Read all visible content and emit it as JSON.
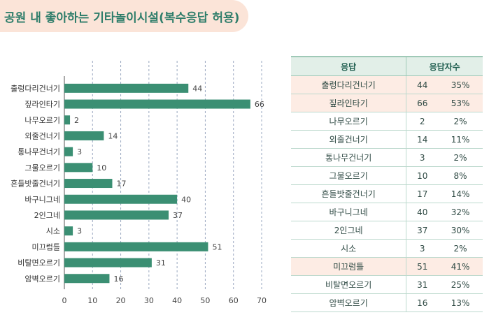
{
  "title": "공원 내 좋아하는 기타놀이시설(복수응답 허용)",
  "colors": {
    "bar": "#3b8f73",
    "title": "#2e7d6a",
    "title_bg": "#fbe4d8",
    "highlight": "#fdece4",
    "header_bg": "#e2efe8"
  },
  "chart_data": {
    "type": "bar",
    "orientation": "horizontal",
    "categories": [
      "출렁다리건너기",
      "짚라인타기",
      "나무오르기",
      "외줄건너기",
      "통나무건너기",
      "그물오르기",
      "흔들밧줄건너기",
      "바구니그네",
      "2인그네",
      "시소",
      "미끄럼틀",
      "비탈면오르기",
      "암벽오르기"
    ],
    "values": [
      44,
      66,
      2,
      14,
      3,
      10,
      17,
      40,
      37,
      3,
      51,
      31,
      16
    ],
    "xlim": [
      0,
      70
    ],
    "xticks": [
      0,
      10,
      20,
      30,
      40,
      50,
      60,
      70
    ],
    "grid": "vertical dashed"
  },
  "table": {
    "headers": [
      "응답",
      "응답자수"
    ],
    "rows": [
      {
        "label": "출렁다리건너기",
        "count": "44",
        "pct": "35%",
        "highlight": true
      },
      {
        "label": "짚라인타기",
        "count": "66",
        "pct": "53%",
        "highlight": true
      },
      {
        "label": "나무오르기",
        "count": "2",
        "pct": "2%",
        "highlight": false
      },
      {
        "label": "외줄건너기",
        "count": "14",
        "pct": "11%",
        "highlight": false
      },
      {
        "label": "통나무건너기",
        "count": "3",
        "pct": "2%",
        "highlight": false
      },
      {
        "label": "그물오르기",
        "count": "10",
        "pct": "8%",
        "highlight": false
      },
      {
        "label": "흔들밧줄건너기",
        "count": "17",
        "pct": "14%",
        "highlight": false
      },
      {
        "label": "바구니그네",
        "count": "40",
        "pct": "32%",
        "highlight": false
      },
      {
        "label": "2인그네",
        "count": "37",
        "pct": "30%",
        "highlight": false
      },
      {
        "label": "시소",
        "count": "3",
        "pct": "2%",
        "highlight": false
      },
      {
        "label": "미끄럼틀",
        "count": "51",
        "pct": "41%",
        "highlight": true
      },
      {
        "label": "비탈면오르기",
        "count": "31",
        "pct": "25%",
        "highlight": false
      },
      {
        "label": "암벽오르기",
        "count": "16",
        "pct": "13%",
        "highlight": false
      }
    ]
  }
}
